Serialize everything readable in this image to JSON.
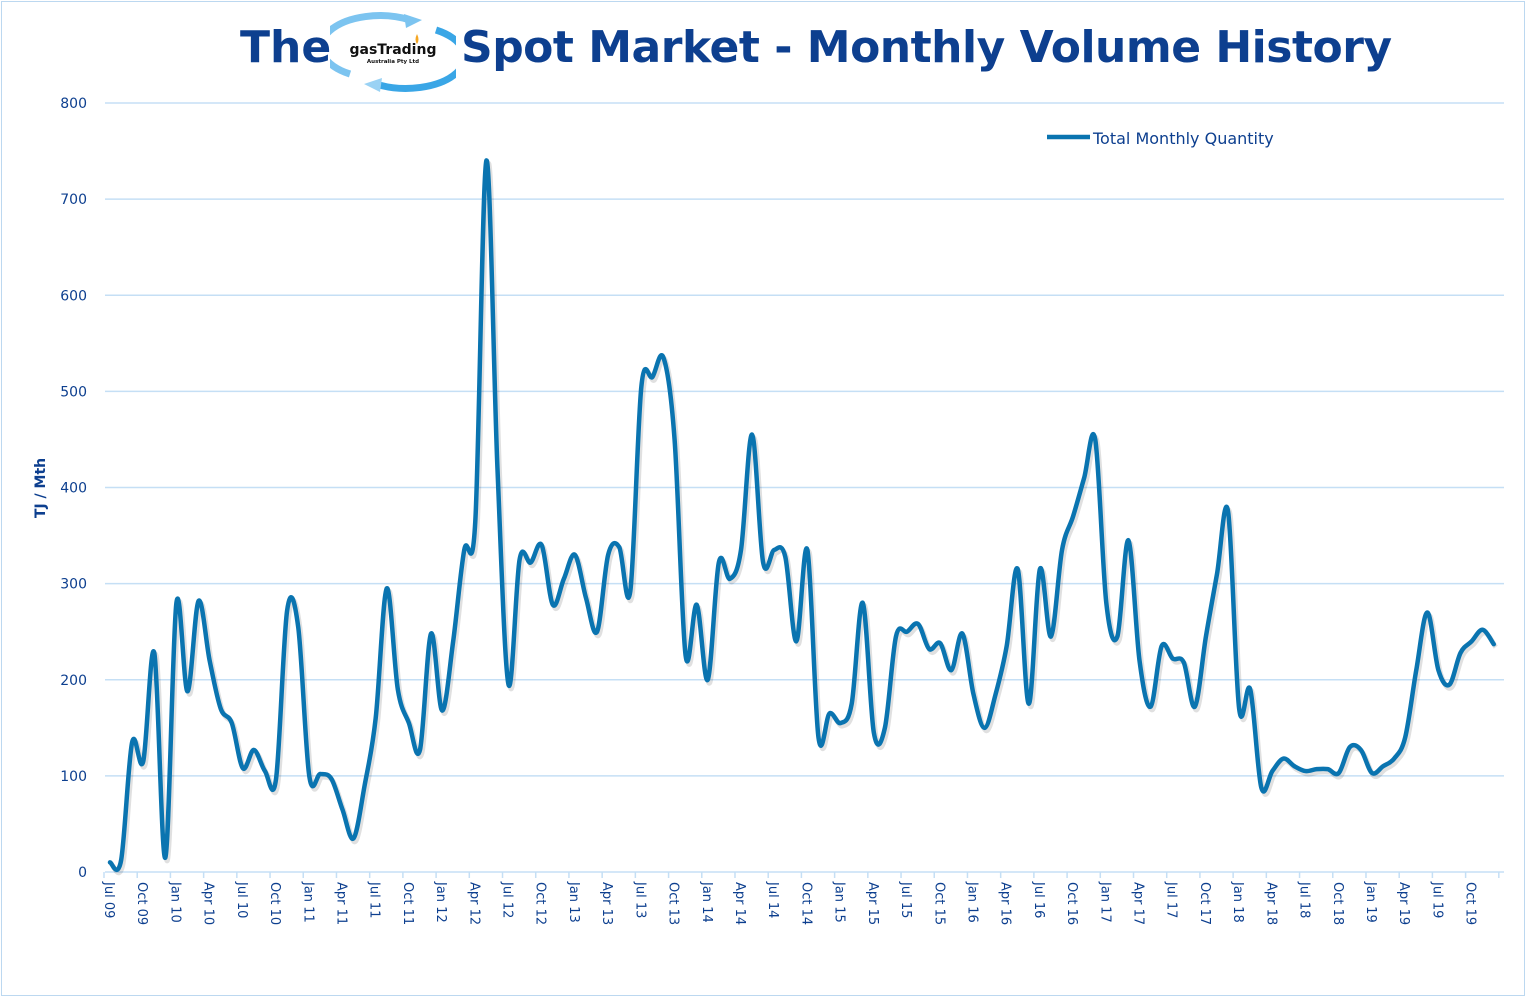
{
  "title": {
    "prefix": "The",
    "main": "Spot Market - Monthly Volume History",
    "logo_text": "gasTrading",
    "logo_subtext": "Australia Pty Ltd"
  },
  "colors": {
    "line": "#0a74b0",
    "grid": "#c5dff5",
    "title": "#0d3f8f",
    "logo_arrow": "#5ab4ea"
  },
  "chart_data": {
    "type": "line",
    "title": "The Spot Market - Monthly Volume History",
    "ylabel": "TJ / Mth",
    "xlabel": "",
    "ylim": [
      0,
      800
    ],
    "yticks": [
      0,
      100,
      200,
      300,
      400,
      500,
      600,
      700,
      800
    ],
    "grid": true,
    "legend_position": "top-right",
    "x_start": "Jul 09",
    "x_end": "Dec 19",
    "x_tick_labels": [
      "Jul 09",
      "Oct 09",
      "Jan 10",
      "Apr 10",
      "Jul 10",
      "Oct 10",
      "Jan 11",
      "Apr 11",
      "Jul 11",
      "Oct 11",
      "Jan 12",
      "Apr 12",
      "Jul 12",
      "Oct 12",
      "Jan 13",
      "Apr 13",
      "Jul 13",
      "Oct 13",
      "Jan 14",
      "Apr 14",
      "Jul 14",
      "Oct 14",
      "Jan 15",
      "Apr 15",
      "Jul 15",
      "Oct 15",
      "Jan 16",
      "Apr 16",
      "Jul 16",
      "Oct 16",
      "Jan 17",
      "Apr 17",
      "Jul 17",
      "Oct 17",
      "Jan 18",
      "Apr 18",
      "Jul 18",
      "Oct 18",
      "Jan 19",
      "Apr 19",
      "Jul 19",
      "Oct 19"
    ],
    "series": [
      {
        "name": "Total Monthly Quantity",
        "values": [
          10,
          12,
          135,
          115,
          228,
          15,
          280,
          188,
          282,
          220,
          170,
          155,
          108,
          127,
          105,
          97,
          272,
          255,
          100,
          102,
          97,
          65,
          35,
          90,
          160,
          295,
          190,
          155,
          127,
          248,
          168,
          240,
          335,
          365,
          740,
          420,
          195,
          325,
          322,
          340,
          278,
          305,
          330,
          285,
          250,
          330,
          338,
          292,
          505,
          515,
          535,
          450,
          225,
          278,
          200,
          322,
          305,
          335,
          455,
          322,
          335,
          328,
          240,
          335,
          140,
          165,
          155,
          175,
          280,
          145,
          150,
          245,
          250,
          258,
          232,
          238,
          210,
          248,
          185,
          150,
          185,
          235,
          315,
          175,
          315,
          245,
          335,
          370,
          410,
          450,
          280,
          245,
          345,
          220,
          172,
          235,
          222,
          218,
          172,
          245,
          310,
          375,
          170,
          190,
          88,
          105,
          118,
          110,
          105,
          107,
          107,
          103,
          130,
          127,
          103,
          110,
          118,
          140,
          210,
          270,
          210,
          195,
          228,
          240,
          252,
          237
        ]
      }
    ]
  }
}
